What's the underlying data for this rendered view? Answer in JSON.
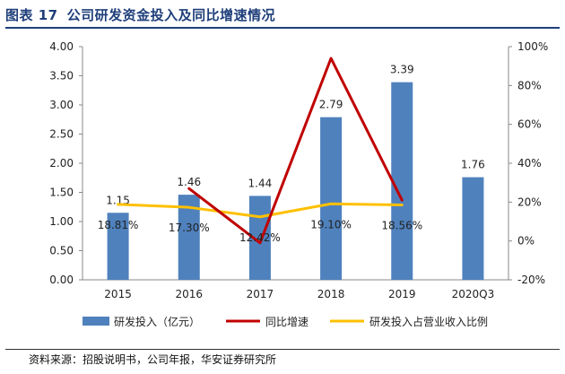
{
  "header": {
    "figure_no": "图表 17",
    "title": "公司研发资金投入及同比增速情况"
  },
  "source": "资料来源：招股说明书，公司年报，华安证券研究所",
  "colors": {
    "bar": "#4f81bd",
    "growth": "#c00000",
    "ratio": "#ffc000",
    "title": "#1f3f7a"
  },
  "chart_data": {
    "type": "bar",
    "categories": [
      "2015",
      "2016",
      "2017",
      "2018",
      "2019",
      "2020Q3"
    ],
    "left_axis": {
      "min": 0,
      "max": 4,
      "ticks": [
        "0.00",
        "0.50",
        "1.00",
        "1.50",
        "2.00",
        "2.50",
        "3.00",
        "3.50",
        "4.00"
      ]
    },
    "right_axis": {
      "min": -20,
      "max": 100,
      "ticks": [
        "-20%",
        "0%",
        "20%",
        "40%",
        "60%",
        "80%",
        "100%"
      ]
    },
    "series": [
      {
        "name": "研发投入（亿元）",
        "type": "bar",
        "axis": "left",
        "values": [
          1.15,
          1.46,
          1.44,
          2.79,
          3.39,
          1.76
        ],
        "labels": [
          "1.15",
          "1.46",
          "1.44",
          "2.79",
          "3.39",
          "1.76"
        ]
      },
      {
        "name": "同比增速",
        "type": "line",
        "axis": "right",
        "values": [
          null,
          27,
          -1,
          94,
          21,
          null
        ]
      },
      {
        "name": "研发投入占营业收入比例",
        "type": "line",
        "axis": "right",
        "values": [
          18.81,
          17.3,
          12.42,
          19.1,
          18.56,
          null
        ],
        "labels": [
          "18.81%",
          "17.30%",
          "12.42%",
          "19.10%",
          "18.56%",
          ""
        ]
      }
    ],
    "legend": [
      "研发投入（亿元）",
      "同比增速",
      "研发投入占营业收入比例"
    ]
  }
}
